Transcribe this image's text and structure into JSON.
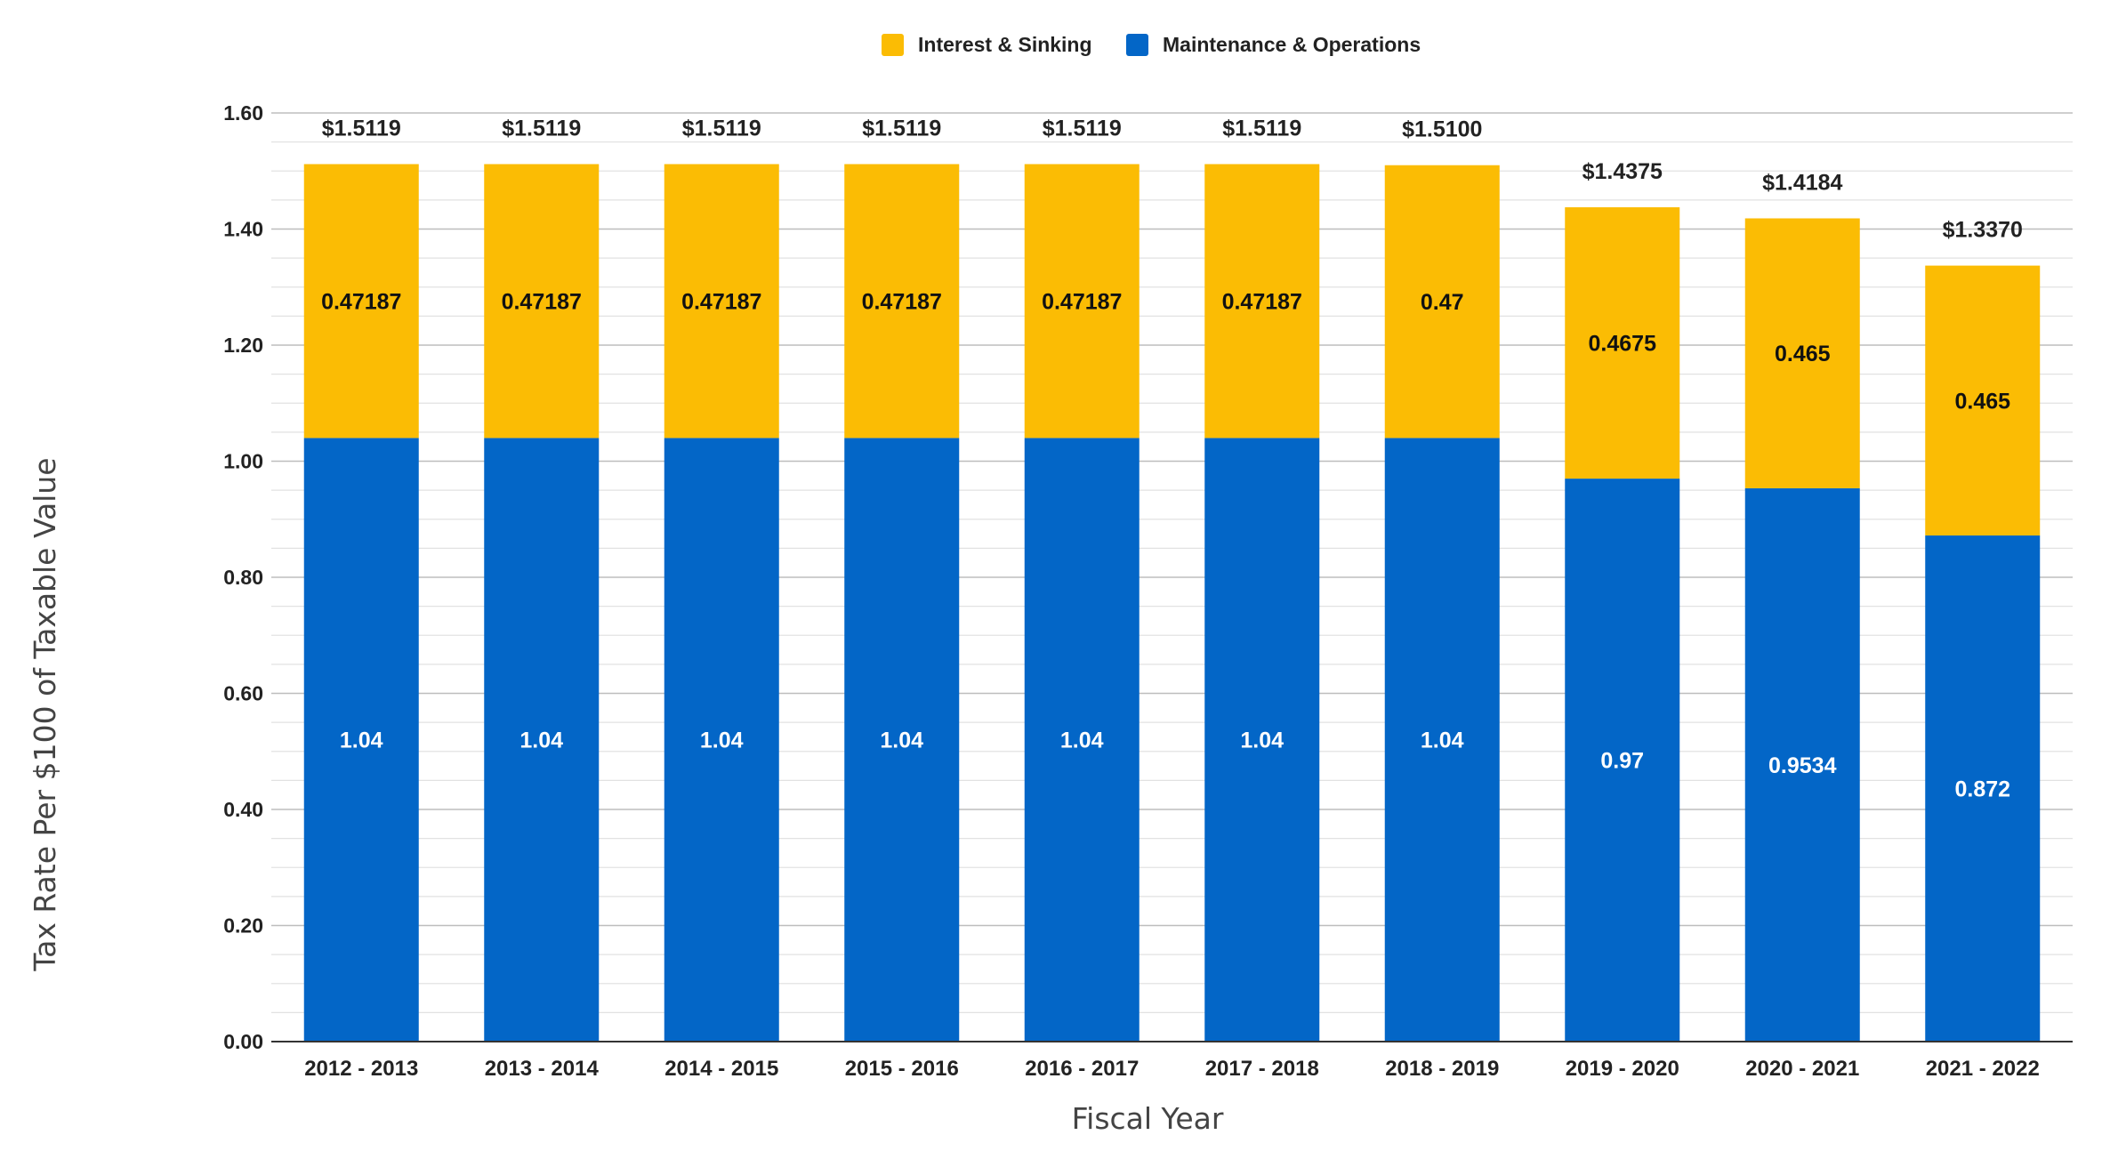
{
  "chart_data": {
    "type": "bar",
    "stacked": true,
    "xlabel": "Fiscal Year",
    "ylabel": "Tax Rate Per $100 of Taxable Value",
    "ylim": [
      0,
      1.6
    ],
    "yticks": [
      "0.00",
      "0.20",
      "0.40",
      "0.60",
      "0.80",
      "1.00",
      "1.20",
      "1.40",
      "1.60"
    ],
    "grid": true,
    "legend_position": "top-center",
    "categories": [
      "2012 - 2013",
      "2013 - 2014",
      "2014 - 2015",
      "2015 - 2016",
      "2016 - 2017",
      "2017 - 2018",
      "2018 - 2019",
      "2019 - 2020",
      "2020 - 2021",
      "2021 - 2022"
    ],
    "series": [
      {
        "name": "Maintenance & Operations",
        "color": "#0366c7",
        "values": [
          1.04,
          1.04,
          1.04,
          1.04,
          1.04,
          1.04,
          1.04,
          0.97,
          0.9534,
          0.872
        ],
        "labels": [
          "1.04",
          "1.04",
          "1.04",
          "1.04",
          "1.04",
          "1.04",
          "1.04",
          "0.97",
          "0.9534",
          "0.872"
        ]
      },
      {
        "name": "Interest & Sinking",
        "color": "#fbbc04",
        "values": [
          0.47187,
          0.47187,
          0.47187,
          0.47187,
          0.47187,
          0.47187,
          0.47,
          0.4675,
          0.465,
          0.465
        ],
        "labels": [
          "0.47187",
          "0.47187",
          "0.47187",
          "0.47187",
          "0.47187",
          "0.47187",
          "0.47",
          "0.4675",
          "0.465",
          "0.465"
        ]
      }
    ],
    "totals": [
      1.5119,
      1.5119,
      1.5119,
      1.5119,
      1.5119,
      1.5119,
      1.51,
      1.4375,
      1.4184,
      1.337
    ],
    "total_labels": [
      "$1.5119",
      "$1.5119",
      "$1.5119",
      "$1.5119",
      "$1.5119",
      "$1.5119",
      "$1.5100",
      "$1.4375",
      "$1.4184",
      "$1.3370"
    ],
    "legend": [
      "Interest & Sinking",
      "Maintenance & Operations"
    ]
  }
}
